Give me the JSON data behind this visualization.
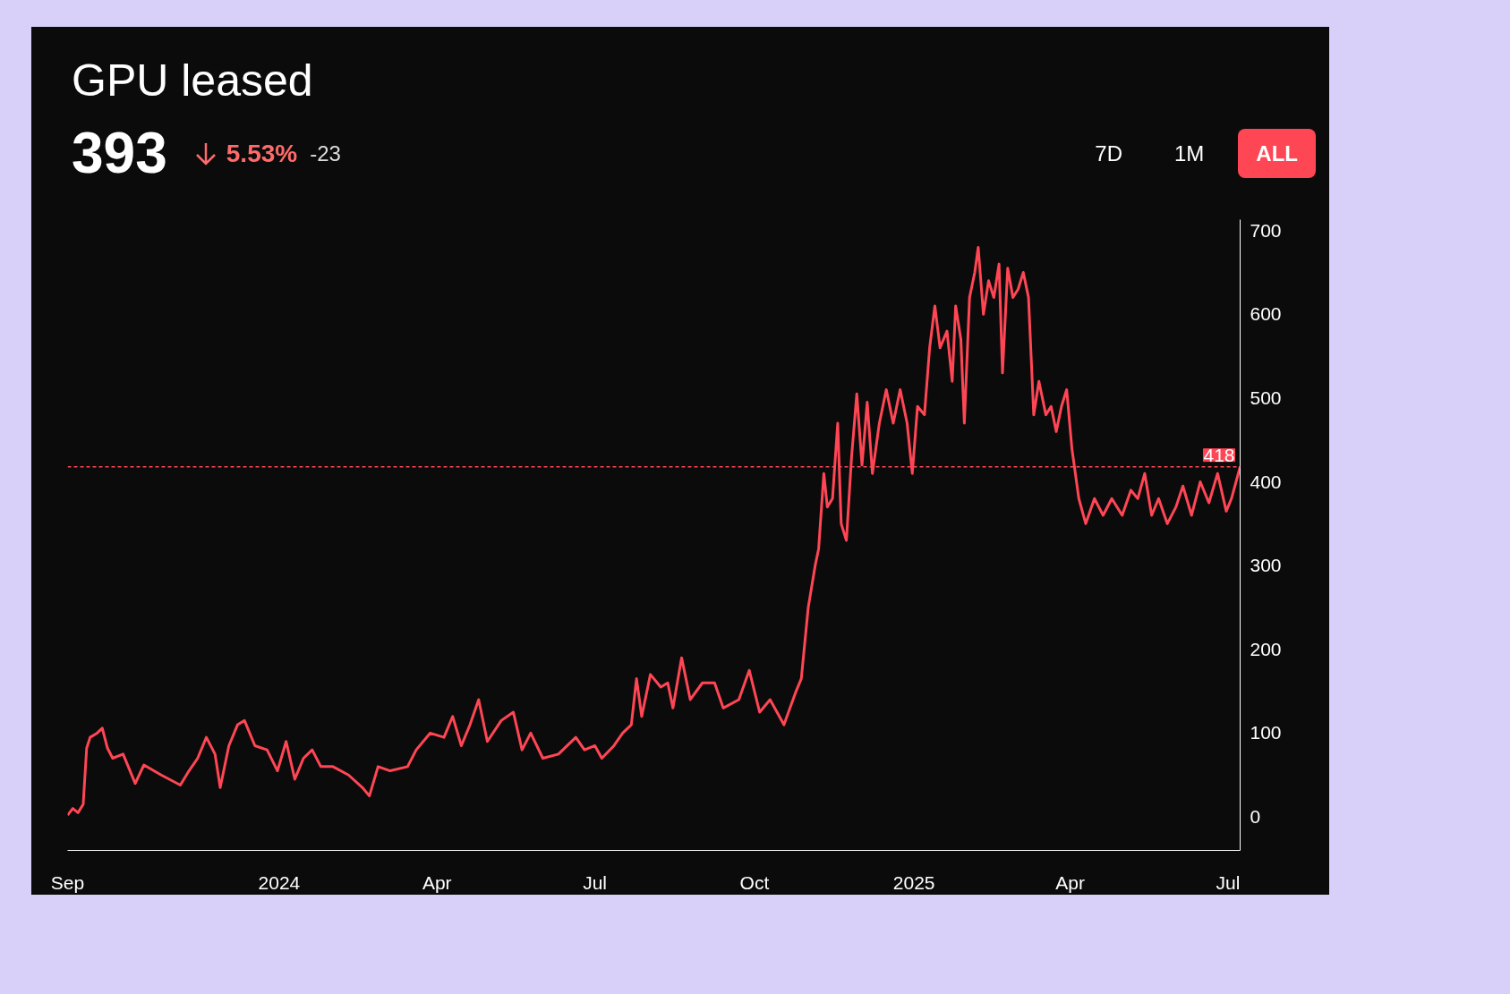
{
  "chart_data": {
    "type": "line",
    "title": "GPU leased",
    "annotations": [
      "393",
      "5.53%",
      "-23",
      "7D",
      "1M",
      "ALL"
    ],
    "x": [
      "2023-09-01",
      "2023-09-04",
      "2023-09-07",
      "2023-09-10",
      "2023-09-12",
      "2023-09-14",
      "2023-09-18",
      "2023-09-21",
      "2023-09-24",
      "2023-09-27",
      "2023-10-03",
      "2023-10-10",
      "2023-10-15",
      "2023-10-25",
      "2023-11-05",
      "2023-11-10",
      "2023-11-15",
      "2023-11-20",
      "2023-11-25",
      "2023-11-28",
      "2023-12-03",
      "2023-12-08",
      "2023-12-12",
      "2023-12-18",
      "2023-12-25",
      "2023-12-31",
      "2024-01-05",
      "2024-01-10",
      "2024-01-15",
      "2024-01-20",
      "2024-01-25",
      "2024-02-01",
      "2024-02-10",
      "2024-02-18",
      "2024-02-22",
      "2024-02-27",
      "2024-03-05",
      "2024-03-15",
      "2024-03-20",
      "2024-03-28",
      "2024-04-05",
      "2024-04-10",
      "2024-04-15",
      "2024-04-20",
      "2024-04-25",
      "2024-04-30",
      "2024-05-08",
      "2024-05-15",
      "2024-05-20",
      "2024-05-25",
      "2024-06-01",
      "2024-06-10",
      "2024-06-20",
      "2024-06-25",
      "2024-07-01",
      "2024-07-05",
      "2024-07-12",
      "2024-07-17",
      "2024-07-22",
      "2024-07-25",
      "2024-07-28",
      "2024-08-02",
      "2024-08-08",
      "2024-08-12",
      "2024-08-15",
      "2024-08-20",
      "2024-08-25",
      "2024-09-01",
      "2024-09-08",
      "2024-09-13",
      "2024-09-22",
      "2024-09-28",
      "2024-10-04",
      "2024-10-10",
      "2024-10-18",
      "2024-10-25",
      "2024-10-28",
      "2024-11-01",
      "2024-11-05",
      "2024-11-07",
      "2024-11-10",
      "2024-11-12",
      "2024-11-15",
      "2024-11-18",
      "2024-11-20",
      "2024-11-23",
      "2024-11-26",
      "2024-11-29",
      "2024-12-02",
      "2024-12-05",
      "2024-12-08",
      "2024-12-12",
      "2024-12-16",
      "2024-12-20",
      "2024-12-24",
      "2024-12-28",
      "2024-12-31",
      "2025-01-03",
      "2025-01-07",
      "2025-01-10",
      "2025-01-13",
      "2025-01-16",
      "2025-01-20",
      "2025-01-23",
      "2025-01-25",
      "2025-01-28",
      "2025-01-30",
      "2025-02-02",
      "2025-02-05",
      "2025-02-07",
      "2025-02-10",
      "2025-02-13",
      "2025-02-16",
      "2025-02-19",
      "2025-02-21",
      "2025-02-24",
      "2025-02-27",
      "2025-03-02",
      "2025-03-05",
      "2025-03-08",
      "2025-03-11",
      "2025-03-14",
      "2025-03-18",
      "2025-03-21",
      "2025-03-24",
      "2025-03-27",
      "2025-03-30",
      "2025-04-02",
      "2025-04-06",
      "2025-04-10",
      "2025-04-15",
      "2025-04-20",
      "2025-04-25",
      "2025-05-01",
      "2025-05-06",
      "2025-05-10",
      "2025-05-14",
      "2025-05-18",
      "2025-05-22",
      "2025-05-27",
      "2025-06-01",
      "2025-06-05",
      "2025-06-10",
      "2025-06-15",
      "2025-06-20",
      "2025-06-25",
      "2025-06-30",
      "2025-07-03",
      "2025-07-08"
    ],
    "series": [
      {
        "color": "#ff4655",
        "values": [
          2,
          10,
          5,
          15,
          82,
          95,
          100,
          106,
          82,
          70,
          75,
          40,
          62,
          50,
          38,
          55,
          70,
          95,
          75,
          35,
          85,
          110,
          115,
          85,
          80,
          55,
          90,
          45,
          70,
          80,
          60,
          60,
          50,
          35,
          25,
          60,
          55,
          60,
          80,
          100,
          95,
          120,
          85,
          110,
          140,
          90,
          115,
          125,
          80,
          100,
          70,
          75,
          95,
          80,
          85,
          70,
          85,
          100,
          110,
          165,
          120,
          170,
          155,
          160,
          130,
          190,
          140,
          160,
          160,
          130,
          140,
          175,
          125,
          140,
          110,
          150,
          165,
          250,
          300,
          320,
          410,
          370,
          380,
          470,
          350,
          330,
          430,
          505,
          420,
          495,
          410,
          470,
          510,
          470,
          510,
          470,
          410,
          490,
          480,
          560,
          610,
          560,
          580,
          520,
          610,
          570,
          470,
          620,
          650,
          680,
          600,
          640,
          620,
          660,
          530,
          655,
          620,
          630,
          650,
          620,
          480,
          520,
          480,
          490,
          460,
          490,
          510,
          440,
          380,
          350,
          380,
          360,
          380,
          360,
          390,
          380,
          410,
          360,
          380,
          350,
          370,
          395,
          360,
          400,
          375,
          410,
          365,
          380,
          418
        ]
      }
    ],
    "xlim": [
      "2023-09-01",
      "2025-07-08"
    ],
    "xticks": [
      {
        "value": "2023-09-01",
        "label": "Sep"
      },
      {
        "value": "2024-01-01",
        "label": "2024"
      },
      {
        "value": "2024-04-01",
        "label": "Apr"
      },
      {
        "value": "2024-07-01",
        "label": "Jul"
      },
      {
        "value": "2024-10-01",
        "label": "Oct"
      },
      {
        "value": "2025-01-01",
        "label": "2025"
      },
      {
        "value": "2025-04-01",
        "label": "Apr"
      },
      {
        "value": "2025-07-01",
        "label": "Jul"
      }
    ],
    "ylim": [
      -40,
      713
    ],
    "yticks": [
      0,
      100,
      200,
      300,
      400,
      500,
      600,
      700
    ],
    "ref_lines": [
      {
        "axis": "y",
        "value": 418,
        "label": "418",
        "color": "#ff4655",
        "line_style": "dashed"
      }
    ],
    "grid": false
  }
}
